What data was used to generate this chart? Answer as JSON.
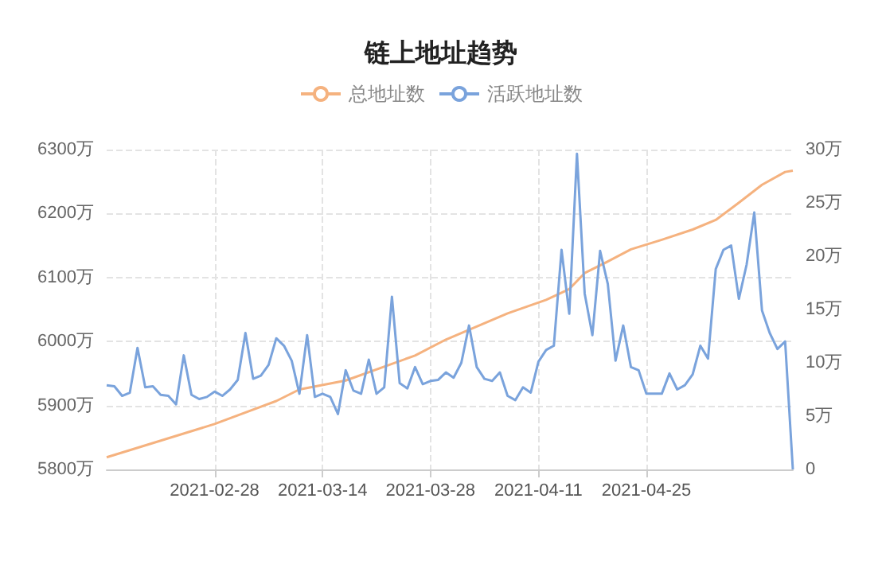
{
  "chart_data": {
    "type": "line",
    "title": "链上地址趋势",
    "legend": "top",
    "grid": true,
    "xlim": [
      "2021-02-14",
      "2021-05-14"
    ],
    "xticks": [
      "2021-02-28",
      "2021-03-14",
      "2021-03-28",
      "2021-04-11",
      "2021-04-25"
    ],
    "ylim": [
      5800,
      6300
    ],
    "yticks": [
      {
        "value": 5800,
        "label": "5800万"
      },
      {
        "value": 5900,
        "label": "5900万"
      },
      {
        "value": 6000,
        "label": "6000万"
      },
      {
        "value": 6100,
        "label": "6100万"
      },
      {
        "value": 6200,
        "label": "6200万"
      },
      {
        "value": 6300,
        "label": "6300万"
      }
    ],
    "y2lim": [
      0,
      30
    ],
    "y2ticks": [
      0,
      {
        "value": 5,
        "label": "5万"
      },
      {
        "value": 10,
        "label": "10万"
      },
      {
        "value": 15,
        "label": "15万"
      },
      {
        "value": 20,
        "label": "20万"
      },
      {
        "value": 25,
        "label": "25万"
      },
      {
        "value": 30,
        "label": "30万"
      }
    ],
    "x": [
      "2021-02-14",
      "2021-02-15",
      "2021-02-16",
      "2021-02-17",
      "2021-02-18",
      "2021-02-19",
      "2021-02-20",
      "2021-02-21",
      "2021-02-22",
      "2021-02-23",
      "2021-02-24",
      "2021-02-25",
      "2021-02-26",
      "2021-02-27",
      "2021-02-28",
      "2021-03-01",
      "2021-03-02",
      "2021-03-03",
      "2021-03-04",
      "2021-03-05",
      "2021-03-06",
      "2021-03-07",
      "2021-03-08",
      "2021-03-09",
      "2021-03-10",
      "2021-03-11",
      "2021-03-12",
      "2021-03-13",
      "2021-03-14",
      "2021-03-15",
      "2021-03-16",
      "2021-03-17",
      "2021-03-18",
      "2021-03-19",
      "2021-03-20",
      "2021-03-21",
      "2021-03-22",
      "2021-03-23",
      "2021-03-24",
      "2021-03-25",
      "2021-03-26",
      "2021-03-27",
      "2021-03-28",
      "2021-03-29",
      "2021-03-30",
      "2021-03-31",
      "2021-04-01",
      "2021-04-02",
      "2021-04-03",
      "2021-04-04",
      "2021-04-05",
      "2021-04-06",
      "2021-04-07",
      "2021-04-08",
      "2021-04-09",
      "2021-04-10",
      "2021-04-11",
      "2021-04-12",
      "2021-04-13",
      "2021-04-14",
      "2021-04-15",
      "2021-04-16",
      "2021-04-17",
      "2021-04-18",
      "2021-04-19",
      "2021-04-20",
      "2021-04-21",
      "2021-04-22",
      "2021-04-23",
      "2021-04-24",
      "2021-04-25",
      "2021-04-26",
      "2021-04-27",
      "2021-04-28",
      "2021-04-29",
      "2021-04-30",
      "2021-05-01",
      "2021-05-02",
      "2021-05-03",
      "2021-05-04",
      "2021-05-05",
      "2021-05-06",
      "2021-05-07",
      "2021-05-08",
      "2021-05-09",
      "2021-05-10",
      "2021-05-11",
      "2021-05-12",
      "2021-05-13",
      "2021-05-14"
    ],
    "series": [
      {
        "name": "总地址数",
        "color": "#f5b27f",
        "x": [
          "2021-02-14",
          "2021-02-28",
          "2021-03-08",
          "2021-03-11",
          "2021-03-17",
          "2021-03-26",
          "2021-03-30",
          "2021-04-07",
          "2021-04-12",
          "2021-04-15",
          "2021-04-17",
          "2021-04-20",
          "2021-04-23",
          "2021-04-27",
          "2021-05-01",
          "2021-05-04",
          "2021-05-07",
          "2021-05-10",
          "2021-05-13",
          "2021-05-14"
        ],
        "values": [
          5819,
          5871,
          5907,
          5925,
          5939,
          5978,
          6003,
          6044,
          6065,
          6082,
          6107,
          6125,
          6144,
          6159,
          6175,
          6190,
          6217,
          6245,
          6265,
          6267
        ]
      },
      {
        "name": "活跃地址数",
        "color": "#7aa3dc",
        "axis": "y2",
        "values": [
          7.9,
          7.8,
          6.9,
          7.2,
          11.4,
          7.7,
          7.8,
          7.0,
          6.9,
          6.1,
          10.7,
          7.0,
          6.6,
          6.8,
          7.3,
          6.9,
          7.5,
          8.4,
          12.8,
          8.5,
          8.8,
          9.8,
          12.3,
          11.6,
          10.2,
          7.1,
          12.6,
          6.8,
          7.1,
          6.8,
          5.2,
          9.3,
          7.4,
          7.1,
          10.3,
          7.1,
          7.7,
          16.2,
          8.1,
          7.6,
          9.6,
          8.0,
          8.3,
          8.4,
          9.1,
          8.6,
          10.0,
          13.5,
          9.6,
          8.5,
          8.3,
          9.1,
          6.9,
          6.5,
          7.7,
          7.2,
          10.1,
          11.2,
          11.6,
          20.6,
          14.6,
          29.6,
          16.5,
          12.6,
          20.5,
          17.4,
          10.2,
          13.5,
          9.6,
          9.3,
          7.1,
          7.1,
          7.1,
          9.0,
          7.5,
          7.9,
          8.9,
          11.6,
          10.4,
          18.8,
          20.6,
          21.0,
          16.0,
          19.2,
          24.1,
          14.9,
          12.8,
          11.3,
          12.0,
          0
        ]
      }
    ]
  }
}
